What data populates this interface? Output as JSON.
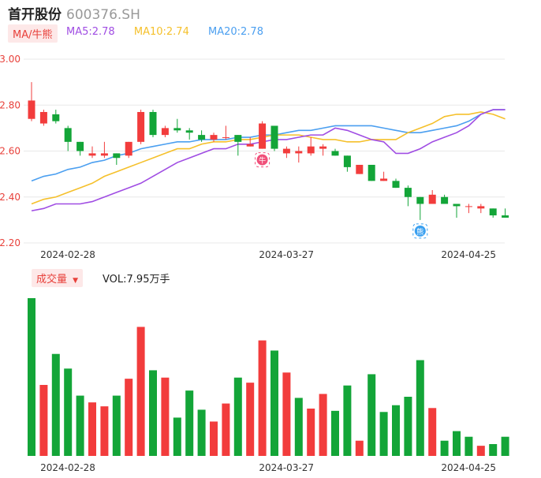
{
  "header": {
    "name": "首开股份",
    "code": "600376.SH"
  },
  "ma": {
    "toggle_label": "MA/牛熊",
    "ma5_label": "MA5:2.78",
    "ma10_label": "MA10:2.74",
    "ma20_label": "MA20:2.78"
  },
  "volume": {
    "toggle_label": "成交量",
    "vol_label": "VOL:7.95万手"
  },
  "colors": {
    "up": "#f23c3c",
    "down": "#13a538",
    "ma5": "#a04de3",
    "ma10": "#f5c02b",
    "ma20": "#4b9ff0",
    "grid": "#e8e8e8",
    "axis_red": "#e8413b"
  },
  "chart_data": [
    {
      "type": "candlestick",
      "y_ticks": [
        "3.00",
        "2.80",
        "2.60",
        "2.40",
        "2.20"
      ],
      "ylim": [
        2.2,
        3.0
      ],
      "x_ticks": [
        {
          "label": "2024-02-28",
          "index": 0
        },
        {
          "label": "2024-03-27",
          "index": 18
        },
        {
          "label": "2024-04-25",
          "index": 33
        }
      ],
      "candles": [
        {
          "open": 2.74,
          "close": 2.82,
          "high": 2.9,
          "low": 2.73
        },
        {
          "open": 2.72,
          "close": 2.77,
          "high": 2.78,
          "low": 2.71
        },
        {
          "open": 2.76,
          "close": 2.73,
          "high": 2.78,
          "low": 2.72
        },
        {
          "open": 2.7,
          "close": 2.64,
          "high": 2.71,
          "low": 2.6
        },
        {
          "open": 2.64,
          "close": 2.6,
          "high": 2.64,
          "low": 2.58
        },
        {
          "open": 2.58,
          "close": 2.59,
          "high": 2.62,
          "low": 2.57
        },
        {
          "open": 2.58,
          "close": 2.59,
          "high": 2.64,
          "low": 2.57
        },
        {
          "open": 2.59,
          "close": 2.57,
          "high": 2.59,
          "low": 2.54
        },
        {
          "open": 2.58,
          "close": 2.64,
          "high": 2.64,
          "low": 2.57
        },
        {
          "open": 2.64,
          "close": 2.77,
          "high": 2.78,
          "low": 2.63
        },
        {
          "open": 2.77,
          "close": 2.67,
          "high": 2.78,
          "low": 2.66
        },
        {
          "open": 2.67,
          "close": 2.7,
          "high": 2.71,
          "low": 2.66
        },
        {
          "open": 2.7,
          "close": 2.69,
          "high": 2.74,
          "low": 2.68
        },
        {
          "open": 2.69,
          "close": 2.68,
          "high": 2.7,
          "low": 2.65
        },
        {
          "open": 2.67,
          "close": 2.65,
          "high": 2.69,
          "low": 2.64
        },
        {
          "open": 2.65,
          "close": 2.67,
          "high": 2.68,
          "low": 2.64
        },
        {
          "open": 2.66,
          "close": 2.66,
          "high": 2.71,
          "low": 2.65
        },
        {
          "open": 2.67,
          "close": 2.64,
          "high": 2.67,
          "low": 2.58
        },
        {
          "open": 2.62,
          "close": 2.63,
          "high": 2.66,
          "low": 2.62
        },
        {
          "open": 2.61,
          "close": 2.72,
          "high": 2.73,
          "low": 2.61
        },
        {
          "open": 2.71,
          "close": 2.61,
          "high": 2.71,
          "low": 2.6
        },
        {
          "open": 2.59,
          "close": 2.61,
          "high": 2.62,
          "low": 2.57
        },
        {
          "open": 2.59,
          "close": 2.6,
          "high": 2.62,
          "low": 2.55
        },
        {
          "open": 2.59,
          "close": 2.62,
          "high": 2.66,
          "low": 2.58
        },
        {
          "open": 2.61,
          "close": 2.62,
          "high": 2.63,
          "low": 2.58
        },
        {
          "open": 2.6,
          "close": 2.58,
          "high": 2.61,
          "low": 2.58
        },
        {
          "open": 2.58,
          "close": 2.53,
          "high": 2.58,
          "low": 2.51
        },
        {
          "open": 2.5,
          "close": 2.54,
          "high": 2.54,
          "low": 2.5
        },
        {
          "open": 2.54,
          "close": 2.47,
          "high": 2.54,
          "low": 2.47
        },
        {
          "open": 2.47,
          "close": 2.48,
          "high": 2.51,
          "low": 2.47
        },
        {
          "open": 2.47,
          "close": 2.44,
          "high": 2.48,
          "low": 2.44
        },
        {
          "open": 2.44,
          "close": 2.4,
          "high": 2.45,
          "low": 2.36
        },
        {
          "open": 2.4,
          "close": 2.37,
          "high": 2.4,
          "low": 2.3
        },
        {
          "open": 2.37,
          "close": 2.41,
          "high": 2.43,
          "low": 2.37
        },
        {
          "open": 2.4,
          "close": 2.37,
          "high": 2.41,
          "low": 2.37
        },
        {
          "open": 2.37,
          "close": 2.36,
          "high": 2.37,
          "low": 2.31
        },
        {
          "open": 2.36,
          "close": 2.36,
          "high": 2.37,
          "low": 2.33
        },
        {
          "open": 2.35,
          "close": 2.36,
          "high": 2.37,
          "low": 2.33
        },
        {
          "open": 2.35,
          "close": 2.32,
          "high": 2.35,
          "low": 2.31
        },
        {
          "open": 2.32,
          "close": 2.31,
          "high": 2.35,
          "low": 2.31
        }
      ],
      "ma5": [
        2.34,
        2.35,
        2.37,
        2.37,
        2.37,
        2.38,
        2.4,
        2.42,
        2.44,
        2.46,
        2.49,
        2.52,
        2.55,
        2.57,
        2.59,
        2.61,
        2.61,
        2.63,
        2.63,
        2.64,
        2.65,
        2.65,
        2.66,
        2.67,
        2.67,
        2.7,
        2.69,
        2.67,
        2.65,
        2.64,
        2.59,
        2.59,
        2.61,
        2.64,
        2.66,
        2.68,
        2.71,
        2.76,
        2.78,
        2.78
      ],
      "ma10": [
        2.37,
        2.39,
        2.4,
        2.42,
        2.44,
        2.46,
        2.49,
        2.51,
        2.53,
        2.55,
        2.57,
        2.59,
        2.61,
        2.61,
        2.63,
        2.64,
        2.64,
        2.65,
        2.65,
        2.66,
        2.67,
        2.67,
        2.67,
        2.66,
        2.65,
        2.65,
        2.64,
        2.64,
        2.65,
        2.65,
        2.65,
        2.68,
        2.7,
        2.72,
        2.75,
        2.76,
        2.76,
        2.77,
        2.76,
        2.74
      ],
      "ma20": [
        2.47,
        2.49,
        2.5,
        2.52,
        2.53,
        2.55,
        2.56,
        2.58,
        2.59,
        2.61,
        2.62,
        2.63,
        2.64,
        2.64,
        2.65,
        2.65,
        2.65,
        2.66,
        2.66,
        2.67,
        2.67,
        2.68,
        2.69,
        2.69,
        2.7,
        2.71,
        2.71,
        2.71,
        2.71,
        2.7,
        2.69,
        2.68,
        2.68,
        2.69,
        2.7,
        2.71,
        2.73,
        2.76,
        2.78,
        2.78
      ],
      "markers": [
        {
          "index": 19,
          "label": "牛",
          "kind": "bull"
        },
        {
          "index": 32,
          "label": "熊",
          "kind": "bear"
        }
      ]
    },
    {
      "type": "bar",
      "title": "VOL:7.95万手",
      "values": [
        28.0,
        12.6,
        18.1,
        15.5,
        10.7,
        9.5,
        8.8,
        10.7,
        13.7,
        22.9,
        15.2,
        13.9,
        6.8,
        11.6,
        8.2,
        6.1,
        9.3,
        13.9,
        13.0,
        20.5,
        18.7,
        14.8,
        10.3,
        8.4,
        11.0,
        8.0,
        12.5,
        2.7,
        14.5,
        7.8,
        9.0,
        10.5,
        17.0,
        8.5,
        2.7,
        4.4,
        3.4,
        1.8,
        2.1,
        3.4
      ],
      "up": [
        false,
        true,
        false,
        false,
        false,
        true,
        true,
        false,
        true,
        true,
        false,
        true,
        false,
        false,
        false,
        true,
        true,
        false,
        true,
        true,
        false,
        true,
        false,
        true,
        true,
        false,
        false,
        true,
        false,
        false,
        false,
        false,
        false,
        true,
        false,
        false,
        false,
        true,
        false,
        false
      ]
    }
  ]
}
